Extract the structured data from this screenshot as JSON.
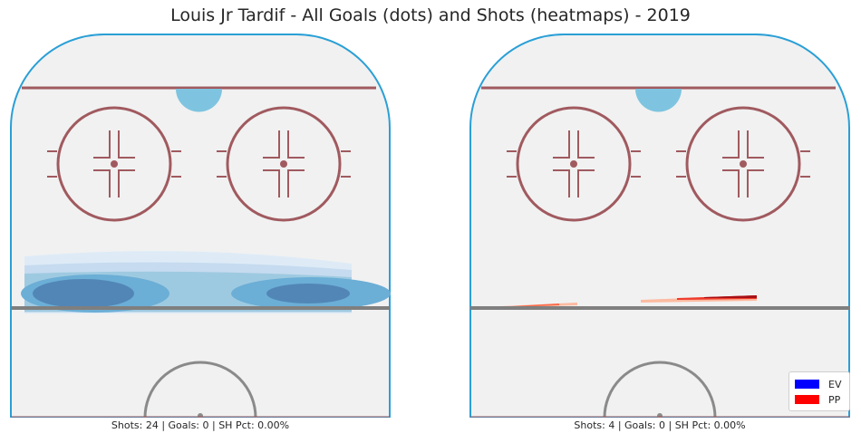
{
  "title": "Louis Jr Tardif - All Goals (dots) and Shots (heatmaps) - 2019",
  "colors": {
    "rink_ice": "#f1f1f1",
    "boards": "#2a9fd6",
    "goal_line": "#a05a5f",
    "faceoff": "#a05a5f",
    "crease": "#7ec4e0",
    "blue_line": "#7f7f7f",
    "center_circle": "#8a8a8a",
    "ev": "#0000ff",
    "pp": "#ff0000"
  },
  "panels": [
    {
      "caption": "Shots: 24 | Goals: 0 | SH Pct: 0.00%",
      "heatmap": "blues"
    },
    {
      "caption": "Shots: 4 | Goals: 0 | SH Pct: 0.00%",
      "heatmap": "reds"
    }
  ],
  "legend": [
    {
      "label": "EV",
      "color": "#0000ff"
    },
    {
      "label": "PP",
      "color": "#ff0000"
    }
  ],
  "chart_data": [
    {
      "type": "heatmap",
      "title": "Louis Jr Tardif - All Goals (dots) and Shots (heatmaps) - 2019",
      "caption": "Shots: 24 | Goals: 0 | SH Pct: 0.00%",
      "shots": 24,
      "goals": 0,
      "sh_pct": "0.00%",
      "strength": "EV",
      "goal_points": []
    },
    {
      "type": "heatmap",
      "title": "Louis Jr Tardif - All Goals (dots) and Shots (heatmaps) - 2019",
      "caption": "Shots: 4 | Goals: 0 | SH Pct: 0.00%",
      "shots": 4,
      "goals": 0,
      "sh_pct": "0.00%",
      "strength": "PP",
      "goal_points": []
    }
  ]
}
